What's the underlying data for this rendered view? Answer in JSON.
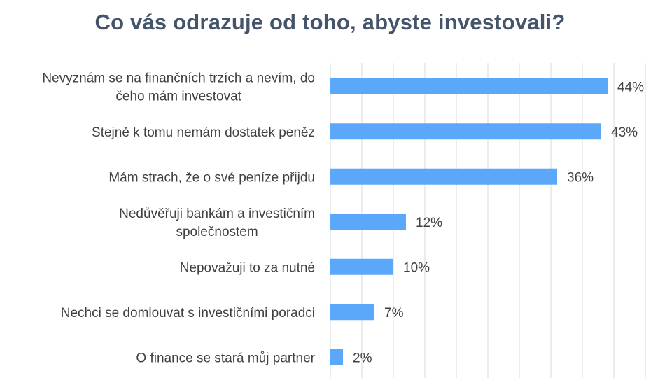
{
  "chart_data": {
    "type": "bar",
    "orientation": "horizontal",
    "title": "Co vás odrazuje od toho, abyste investovali?",
    "xlabel": "",
    "ylabel": "",
    "xlim": [
      0,
      50
    ],
    "grid": true,
    "legend": "none",
    "value_suffix": "%",
    "bar_color": "#5BA8FA",
    "grid_color": "#D9D9D9",
    "title_color": "#44546A",
    "label_color": "#404040",
    "categories": [
      [
        "Nevyznám se na finančních trzích a nevím, do",
        "čeho mám investovat"
      ],
      [
        "Stejně k tomu nemám dostatek peněz"
      ],
      [
        "Mám strach, že o své peníze přijdu"
      ],
      [
        "Nedůvěřuji bankám a investičním",
        "společnostem"
      ],
      [
        "Nepovažuji to za nutné"
      ],
      [
        "Nechci se domlouvat s investičními poradci"
      ],
      [
        "O finance se stará můj partner"
      ]
    ],
    "values": [
      44,
      43,
      36,
      12,
      10,
      7,
      2
    ]
  }
}
